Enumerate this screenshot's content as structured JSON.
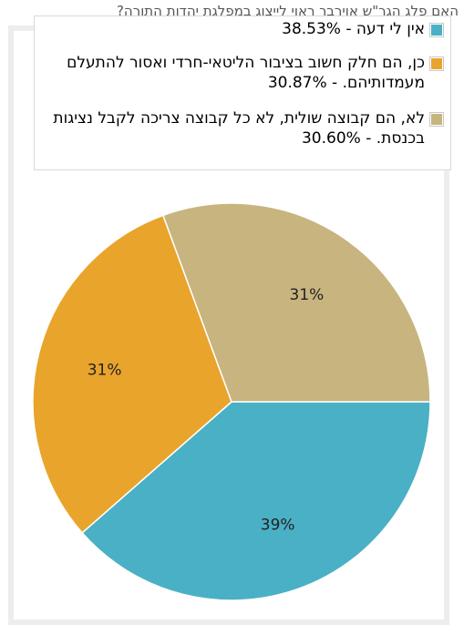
{
  "question": "האם פלג הגר\"ש אוירבך ראוי לייצוג במפלגת יהדות התורה?",
  "chart_data": {
    "type": "pie",
    "title": "",
    "slices": [
      {
        "label": "אין לי דעה - 38.53%",
        "value": 38.53,
        "percent_label": "39%",
        "color": "#4ab0c5"
      },
      {
        "label": "כן, הם חלק חשוב בציבור הליטאי-חרדי ואסור להתעלם מעמדותיהם. - 30.87%",
        "value": 30.87,
        "percent_label": "31%",
        "color": "#e9a42c"
      },
      {
        "label": "לא, הם קבוצה שולית, לא כל קבוצה צריכה לקבל נציגות בכנסת. - 30.60%",
        "value": 30.6,
        "percent_label": "31%",
        "color": "#c8b47e"
      }
    ],
    "start_angle_deg": 0,
    "direction": "clockwise",
    "legend_position": "top"
  }
}
